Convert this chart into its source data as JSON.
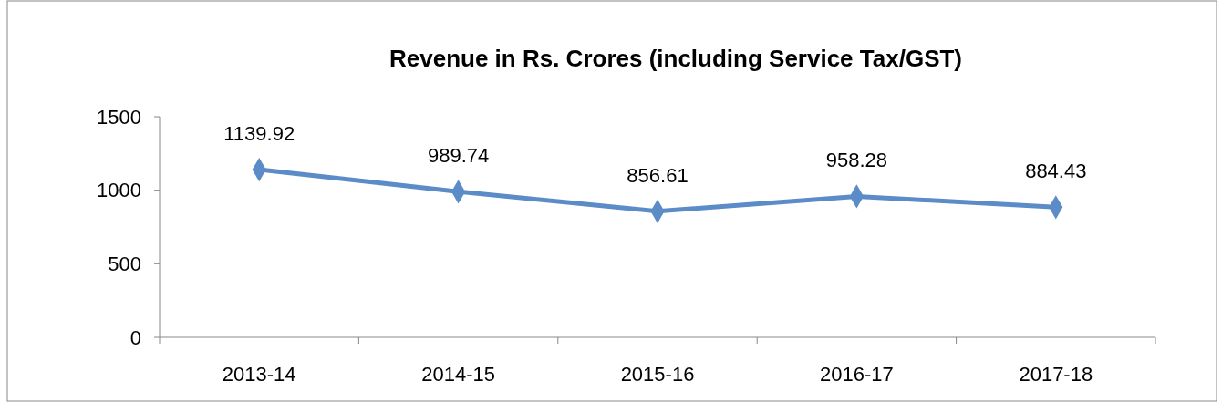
{
  "chart_data": {
    "type": "line",
    "title": "Revenue in Rs. Crores (including Service Tax/GST)",
    "categories": [
      "2013-14",
      "2014-15",
      "2015-16",
      "2016-17",
      "2017-18"
    ],
    "series": [
      {
        "color": "#5b8cc8",
        "values": [
          1139.92,
          989.74,
          856.61,
          958.28,
          884.43
        ]
      }
    ],
    "ylim": [
      0,
      1500
    ],
    "yticks": [
      0,
      500,
      1000,
      1500
    ],
    "grid": false,
    "marker": "diamond",
    "line_style": "solid",
    "data_labels": true
  }
}
